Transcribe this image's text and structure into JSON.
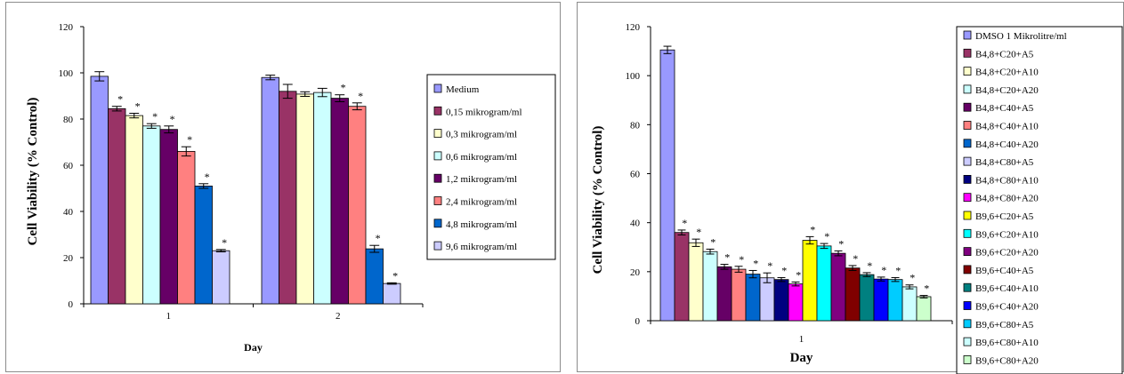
{
  "charts": [
    {
      "id": "left",
      "chart_data": {
        "type": "bar",
        "ylabel": "Cell Viability  (% Control)",
        "xlabel": "Day",
        "ylim": [
          0,
          120
        ],
        "yticks": [
          0,
          20,
          40,
          60,
          80,
          100,
          120
        ],
        "categories": [
          "1",
          "2"
        ],
        "grid": false,
        "legend_position": "right",
        "series": [
          {
            "name": "Medium",
            "color": "#9999ff",
            "values": [
              98.5,
              98.0
            ],
            "errors": [
              2.0,
              1.0
            ],
            "stars": [
              "",
              ""
            ]
          },
          {
            "name": "0,15  mikrogram/ml",
            "color": "#993366",
            "values": [
              84.5,
              92.0
            ],
            "errors": [
              1.0,
              3.0
            ],
            "stars": [
              "*",
              ""
            ]
          },
          {
            "name": "0,3  mikrogram/ml",
            "color": "#ffffcc",
            "values": [
              81.5,
              90.8
            ],
            "errors": [
              1.0,
              1.0
            ],
            "stars": [
              "*",
              ""
            ]
          },
          {
            "name": "0,6  mikrogram/ml",
            "color": "#ccffff",
            "values": [
              77.0,
              91.5
            ],
            "errors": [
              1.0,
              1.8
            ],
            "stars": [
              "*",
              ""
            ]
          },
          {
            "name": "1,2  mikrogram/ml",
            "color": "#660066",
            "values": [
              75.5,
              89.0
            ],
            "errors": [
              1.5,
              1.5
            ],
            "stars": [
              "*",
              "*"
            ]
          },
          {
            "name": "2,4  mikrogram/ml",
            "color": "#ff8080",
            "values": [
              66.0,
              85.5
            ],
            "errors": [
              2.0,
              1.5
            ],
            "stars": [
              "*",
              "*"
            ]
          },
          {
            "name": "4,8  mikrogram/ml",
            "color": "#0066cc",
            "values": [
              51.0,
              23.8
            ],
            "errors": [
              1.0,
              1.5
            ],
            "stars": [
              "*",
              "*"
            ]
          },
          {
            "name": "9,6  mikrogram/ml",
            "color": "#ccccff",
            "values": [
              23.0,
              8.8
            ],
            "errors": [
              0.5,
              0.3
            ],
            "stars": [
              "*",
              "*"
            ]
          }
        ]
      }
    },
    {
      "id": "right",
      "chart_data": {
        "type": "bar",
        "ylabel": "Cell Viability  (% Control)",
        "xlabel": "Day",
        "ylim": [
          0,
          120
        ],
        "yticks": [
          0,
          20,
          40,
          60,
          80,
          100,
          120
        ],
        "categories": [
          "1"
        ],
        "grid": false,
        "legend_position": "right",
        "series": [
          {
            "name": "DMSO 1 Mikrolitre/ml",
            "color": "#9999ff",
            "values": [
              110.5
            ],
            "errors": [
              1.5
            ],
            "stars": [
              ""
            ]
          },
          {
            "name": "B4,8+C20+A5",
            "color": "#993366",
            "values": [
              36.0
            ],
            "errors": [
              1.0
            ],
            "stars": [
              "*"
            ]
          },
          {
            "name": "B4,8+C20+A10",
            "color": "#ffffcc",
            "values": [
              31.8
            ],
            "errors": [
              1.5
            ],
            "stars": [
              "*"
            ]
          },
          {
            "name": "B4,8+C20+A20",
            "color": "#ccffff",
            "values": [
              28.2
            ],
            "errors": [
              1.0
            ],
            "stars": [
              "*"
            ]
          },
          {
            "name": "B4,8+C40+A5",
            "color": "#660066",
            "values": [
              22.0
            ],
            "errors": [
              1.0
            ],
            "stars": [
              "*"
            ]
          },
          {
            "name": "B4,8+C40+A10",
            "color": "#ff8080",
            "values": [
              21.0
            ],
            "errors": [
              1.2
            ],
            "stars": [
              "*"
            ]
          },
          {
            "name": "B4,8+C40+A20",
            "color": "#0066cc",
            "values": [
              19.0
            ],
            "errors": [
              1.5
            ],
            "stars": [
              "*"
            ]
          },
          {
            "name": "B4,8+C80+A5",
            "color": "#ccccff",
            "values": [
              17.5
            ],
            "errors": [
              2.0
            ],
            "stars": [
              "*"
            ]
          },
          {
            "name": "B4,8+C80+A10",
            "color": "#000080",
            "values": [
              16.8
            ],
            "errors": [
              0.8
            ],
            "stars": [
              "*"
            ]
          },
          {
            "name": "B4,8+C80+A20",
            "color": "#ff00ff",
            "values": [
              15.0
            ],
            "errors": [
              0.8
            ],
            "stars": [
              "*"
            ]
          },
          {
            "name": "B9,6+C20+A5",
            "color": "#ffff00",
            "values": [
              32.8
            ],
            "errors": [
              1.5
            ],
            "stars": [
              "*"
            ]
          },
          {
            "name": "B9,6+C20+A10",
            "color": "#00ffff",
            "values": [
              30.5
            ],
            "errors": [
              1.0
            ],
            "stars": [
              "*"
            ]
          },
          {
            "name": "B9,6+C20+A20",
            "color": "#800080",
            "values": [
              27.5
            ],
            "errors": [
              1.0
            ],
            "stars": [
              "*"
            ]
          },
          {
            "name": "B9,6+C40+A5",
            "color": "#800000",
            "values": [
              21.5
            ],
            "errors": [
              1.0
            ],
            "stars": [
              "*"
            ]
          },
          {
            "name": "B9,6+C40+A10",
            "color": "#008080",
            "values": [
              18.8
            ],
            "errors": [
              0.8
            ],
            "stars": [
              "*"
            ]
          },
          {
            "name": "B9,6+C40+A20",
            "color": "#0000ff",
            "values": [
              17.0
            ],
            "errors": [
              0.8
            ],
            "stars": [
              "*"
            ]
          },
          {
            "name": "B9,6+C80+A5",
            "color": "#00ccff",
            "values": [
              16.8
            ],
            "errors": [
              0.8
            ],
            "stars": [
              "*"
            ]
          },
          {
            "name": "B9,6+C80+A10",
            "color": "#ccffff",
            "values": [
              13.8
            ],
            "errors": [
              0.8
            ],
            "stars": [
              "*"
            ]
          },
          {
            "name": "B9,6+C80+A20",
            "color": "#ccffcc",
            "values": [
              9.8
            ],
            "errors": [
              0.5
            ],
            "stars": [
              "*"
            ]
          }
        ]
      }
    }
  ]
}
